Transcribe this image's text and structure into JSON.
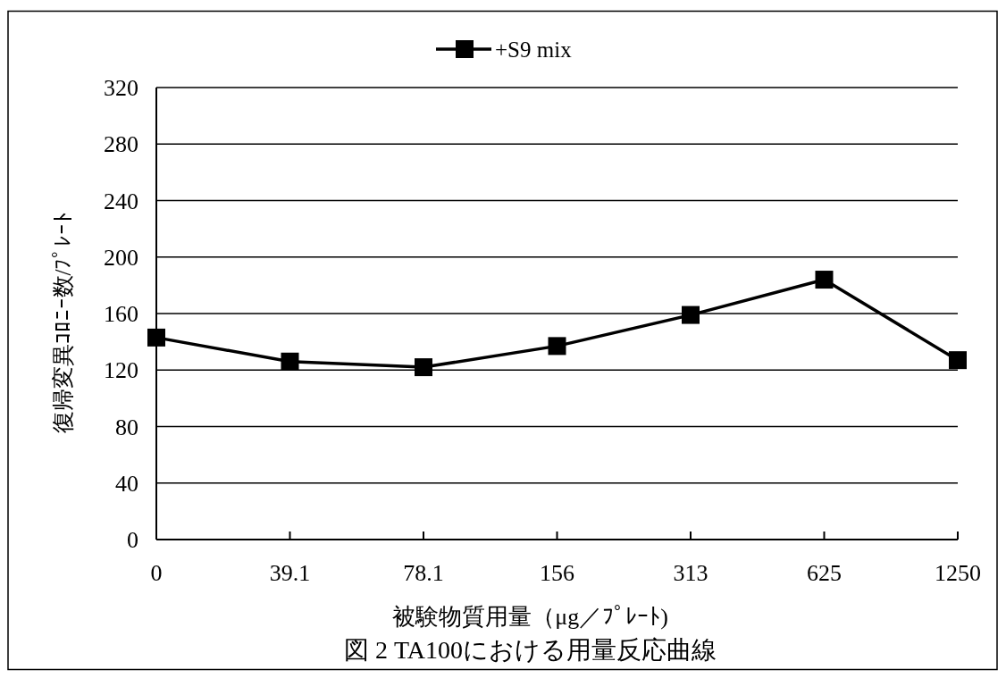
{
  "chart_data": {
    "type": "line",
    "title": "図 2 TA100における用量反応曲線",
    "xlabel": "被験物質用量（μg／ﾌﾟﾚｰﾄ)",
    "ylabel": "復帰変異ｺﾛﾆｰ数/ﾌﾟﾚｰﾄ",
    "categories": [
      "0",
      "39.1",
      "78.1",
      "156",
      "313",
      "625",
      "1250"
    ],
    "series": [
      {
        "name": "+S9 mix",
        "color": "#000000",
        "values": [
          143,
          126,
          122,
          137,
          159,
          184,
          127
        ]
      }
    ],
    "ylim": [
      0,
      320
    ],
    "yticks": [
      0,
      40,
      80,
      120,
      160,
      200,
      240,
      280,
      320
    ],
    "grid": "y",
    "legend": "top",
    "marker": "square",
    "line_style": "solid"
  }
}
